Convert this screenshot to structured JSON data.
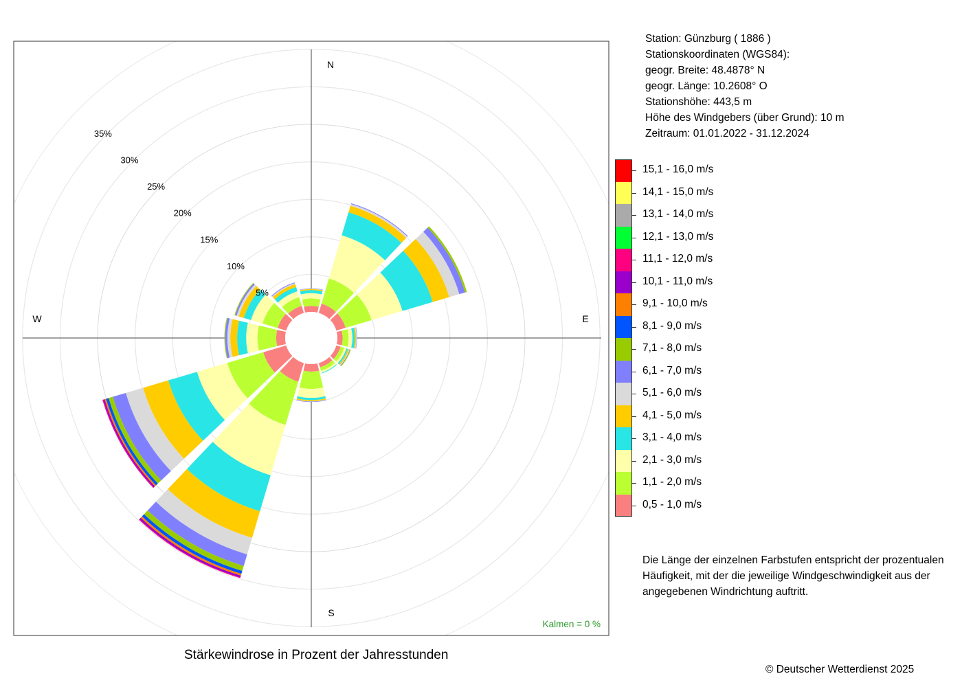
{
  "station_info": {
    "station": "Station:  Günzburg  ( 1886 )",
    "coords_header": "Stationskoordinaten (WGS84):",
    "latitude": "geogr. Breite: 48.4878° N",
    "longitude": "geogr. Länge: 10.2608° O",
    "elevation": "Stationshöhe: 443,5 m",
    "sensor_height": "Höhe des Windgebers (über Grund): 10 m",
    "period": "Zeitraum: 01.01.2022 - 31.12.2024"
  },
  "note": "Die Länge der einzelnen Farbstufen entspricht der prozentualen Häufigkeit, mit der die jeweilige Windgeschwindigkeit aus der angegebenen Windrichtung auftritt.",
  "copyright": "© Deutscher Wetterdienst  2025",
  "caption": "Stärkewindrose in Prozent der Jahresstunden",
  "calm_label": "Kalmen  =  0 %",
  "chart_data": {
    "type": "wind-rose",
    "compass": [
      "N",
      "E",
      "S",
      "W"
    ],
    "ring_labels": [
      "5%",
      "10%",
      "15%",
      "20%",
      "25%",
      "30%",
      "35%"
    ],
    "rings": [
      5,
      10,
      15,
      20,
      25,
      30,
      35
    ],
    "speed_classes": [
      {
        "label": "0,5 - 1,0 m/s",
        "color": "#FA8080"
      },
      {
        "label": "1,1 - 2,0 m/s",
        "color": "#BBFF33"
      },
      {
        "label": "2,1 - 3,0 m/s",
        "color": "#FFFFAA"
      },
      {
        "label": "3,1 - 4,0 m/s",
        "color": "#2AE5E5"
      },
      {
        "label": "4,1 - 5,0 m/s",
        "color": "#FFCC00"
      },
      {
        "label": "5,1 - 6,0 m/s",
        "color": "#DADADA"
      },
      {
        "label": "6,1 - 7,0 m/s",
        "color": "#8080FF"
      },
      {
        "label": "7,1 - 8,0 m/s",
        "color": "#99CC00"
      },
      {
        "label": "8,1 - 9,0 m/s",
        "color": "#0055FF"
      },
      {
        "label": "9,1 - 10,0 m/s",
        "color": "#FF8000"
      },
      {
        "label": "10,1 - 11,0 m/s",
        "color": "#9900CC"
      },
      {
        "label": "11,1 - 12,0 m/s",
        "color": "#FF0080"
      },
      {
        "label": "12,1 - 13,0 m/s",
        "color": "#00FF33"
      },
      {
        "label": "13,1 - 14,0 m/s",
        "color": "#AAAAAA"
      },
      {
        "label": "14,1 - 15,0 m/s",
        "color": "#FFFF55"
      },
      {
        "label": "15,1 - 16,0 m/s",
        "color": "#FF0000"
      }
    ],
    "sectors": [
      {
        "dir": 0,
        "values": [
          0.8,
          1.0,
          0.7,
          0.4,
          0.15,
          0.05,
          0.05
        ]
      },
      {
        "dir": 30,
        "values": [
          1.3,
          3.5,
          6.0,
          3.2,
          0.9,
          0.25,
          0.1
        ]
      },
      {
        "dir": 60,
        "values": [
          1.3,
          3.6,
          4.3,
          4.2,
          2.3,
          1.4,
          0.8,
          0.25
        ]
      },
      {
        "dir": 90,
        "values": [
          0.7,
          0.8,
          0.5,
          0.35,
          0.15,
          0.1,
          0.05
        ]
      },
      {
        "dir": 120,
        "values": [
          0.6,
          0.5,
          0.3,
          0.2,
          0.15,
          0.1,
          0.05,
          0.1
        ]
      },
      {
        "dir": 150,
        "values": [
          0.6,
          0.5,
          0.25,
          0.1
        ]
      },
      {
        "dir": 180,
        "values": [
          1.0,
          2.3,
          1.2,
          0.3,
          0.15,
          0.05,
          0.05
        ]
      },
      {
        "dir": 210,
        "values": [
          2.6,
          6.0,
          7.0,
          5.0,
          3.7,
          2.3,
          1.6,
          0.7,
          0.4,
          0.25,
          0.25,
          0.1
        ]
      },
      {
        "dir": 240,
        "values": [
          3.2,
          5.0,
          4.2,
          4.0,
          3.5,
          2.4,
          1.8,
          0.6,
          0.35,
          0.2,
          0.2,
          0.1
        ]
      },
      {
        "dir": 270,
        "values": [
          1.2,
          2.5,
          1.5,
          1.2,
          0.9,
          0.4,
          0.3,
          0.1
        ]
      },
      {
        "dir": 300,
        "values": [
          1.2,
          2.1,
          1.6,
          1.0,
          0.7,
          0.3,
          0.2,
          0.1
        ]
      },
      {
        "dir": 330,
        "values": [
          1.0,
          1.2,
          0.8,
          0.6,
          0.4,
          0.15,
          0.1
        ]
      }
    ]
  }
}
